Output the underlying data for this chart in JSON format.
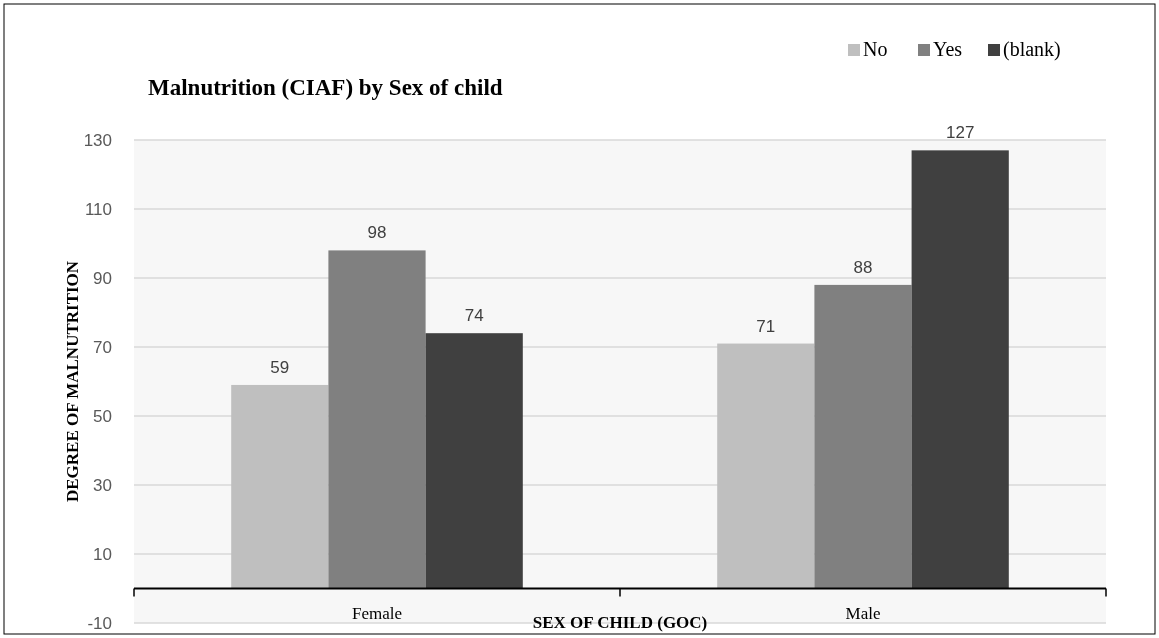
{
  "chart_data": {
    "type": "bar",
    "title": "Malnutrition (CIAF) by Sex of child",
    "xlabel": "SEX OF CHILD (GOC)",
    "ylabel": "DEGREE OF MALNUTRITION",
    "categories": [
      "Female",
      "Male"
    ],
    "series": [
      {
        "name": "No",
        "color": "#bfbfbf",
        "values": [
          59,
          71
        ]
      },
      {
        "name": "Yes",
        "color": "#808080",
        "values": [
          98,
          88
        ]
      },
      {
        "name": "(blank)",
        "color": "#404040",
        "values": [
          74,
          127
        ]
      }
    ],
    "ylim": [
      -10,
      130
    ],
    "yticks": [
      -10,
      10,
      30,
      50,
      70,
      90,
      110,
      130
    ],
    "grid": "y",
    "legend": "top right",
    "data_labels": true
  }
}
